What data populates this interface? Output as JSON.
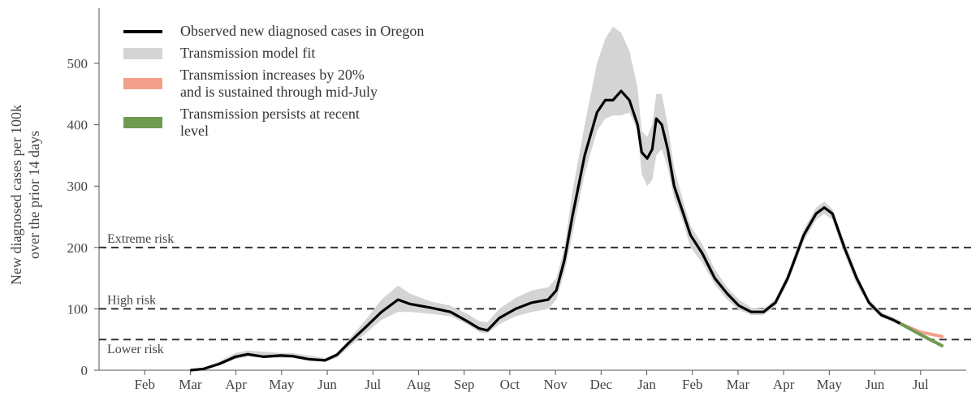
{
  "chart_data": {
    "type": "line",
    "ylabel": [
      "New diagnosed cases per 100k",
      "over the prior 14 days"
    ],
    "xlim": [
      0,
      19
    ],
    "xticks": [
      {
        "value": 1,
        "label": "Feb"
      },
      {
        "value": 2,
        "label": "Mar"
      },
      {
        "value": 3,
        "label": "Apr"
      },
      {
        "value": 4,
        "label": "May"
      },
      {
        "value": 5,
        "label": "Jun"
      },
      {
        "value": 6,
        "label": "Jul"
      },
      {
        "value": 7,
        "label": "Aug"
      },
      {
        "value": 8,
        "label": "Sep"
      },
      {
        "value": 9,
        "label": "Oct"
      },
      {
        "value": 10,
        "label": "Nov"
      },
      {
        "value": 11,
        "label": "Dec"
      },
      {
        "value": 12,
        "label": "Jan"
      },
      {
        "value": 13,
        "label": "Feb"
      },
      {
        "value": 14,
        "label": "Mar"
      },
      {
        "value": 15,
        "label": "Apr"
      },
      {
        "value": 16,
        "label": "May"
      },
      {
        "value": 17,
        "label": "Jun"
      },
      {
        "value": 18,
        "label": "Jul"
      }
    ],
    "ylim": [
      0,
      590
    ],
    "yticks": [
      0,
      100,
      200,
      300,
      400,
      500
    ],
    "thresholds": [
      {
        "value": 200,
        "label": "Extreme risk"
      },
      {
        "value": 100,
        "label": "High risk"
      },
      {
        "value": 50,
        "label": "Lower risk"
      }
    ],
    "series": [
      {
        "name": "Observed new diagnosed cases in Oregon",
        "color": "#000000",
        "kind": "line",
        "x": [
          2.0,
          2.28,
          2.63,
          2.99,
          3.26,
          3.61,
          3.97,
          4.23,
          4.59,
          4.95,
          5.21,
          5.48,
          5.84,
          6.19,
          6.55,
          6.81,
          7.26,
          7.7,
          8.06,
          8.33,
          8.51,
          8.77,
          9.13,
          9.48,
          9.84,
          10.02,
          10.2,
          10.37,
          10.64,
          10.91,
          11.09,
          11.26,
          11.44,
          11.62,
          11.8,
          11.89,
          12.01,
          12.12,
          12.21,
          12.33,
          12.46,
          12.6,
          12.78,
          12.96,
          13.22,
          13.49,
          13.76,
          14.02,
          14.29,
          14.56,
          14.82,
          15.09,
          15.44,
          15.71,
          15.89,
          16.07,
          16.33,
          16.6,
          16.87,
          17.14,
          17.4,
          17.58
        ],
        "values": [
          0,
          2,
          10,
          22,
          26,
          22,
          24,
          23,
          18,
          16,
          25,
          45,
          70,
          95,
          115,
          108,
          102,
          95,
          80,
          68,
          65,
          85,
          100,
          110,
          115,
          130,
          180,
          250,
          350,
          420,
          440,
          440,
          455,
          440,
          400,
          355,
          345,
          360,
          410,
          400,
          360,
          300,
          260,
          220,
          190,
          150,
          125,
          105,
          95,
          95,
          110,
          150,
          220,
          255,
          265,
          255,
          200,
          150,
          110,
          90,
          82,
          75
        ]
      },
      {
        "name": "Transmission model fit",
        "color": "#d4d4d4",
        "kind": "band",
        "x": [
          2.0,
          2.28,
          2.63,
          2.99,
          3.26,
          3.61,
          3.97,
          4.23,
          4.59,
          4.95,
          5.21,
          5.48,
          5.84,
          6.19,
          6.55,
          6.81,
          7.26,
          7.7,
          8.06,
          8.33,
          8.51,
          8.77,
          9.13,
          9.48,
          9.84,
          10.02,
          10.2,
          10.37,
          10.64,
          10.91,
          11.09,
          11.26,
          11.44,
          11.62,
          11.8,
          11.89,
          12.01,
          12.12,
          12.21,
          12.33,
          12.46,
          12.6,
          12.78,
          12.96,
          13.22,
          13.49,
          13.76,
          14.02,
          14.29,
          14.56,
          14.82,
          15.09,
          15.44,
          15.71,
          15.89,
          16.07,
          16.33,
          16.6,
          16.87,
          17.14,
          17.4,
          17.58
        ],
        "lower": [
          0,
          1,
          8,
          18,
          22,
          20,
          20,
          20,
          16,
          14,
          20,
          38,
          60,
          82,
          95,
          95,
          92,
          88,
          75,
          62,
          60,
          75,
          88,
          95,
          100,
          115,
          160,
          220,
          320,
          390,
          410,
          415,
          415,
          420,
          390,
          320,
          300,
          310,
          350,
          360,
          330,
          280,
          245,
          200,
          175,
          140,
          115,
          98,
          90,
          90,
          104,
          142,
          210,
          245,
          255,
          245,
          190,
          140,
          105,
          86,
          78,
          72
        ],
        "upper": [
          0,
          4,
          14,
          28,
          32,
          30,
          28,
          28,
          24,
          20,
          28,
          50,
          82,
          115,
          138,
          125,
          112,
          105,
          92,
          80,
          78,
          100,
          118,
          130,
          135,
          150,
          200,
          290,
          400,
          500,
          540,
          560,
          550,
          520,
          460,
          390,
          380,
          400,
          450,
          450,
          400,
          330,
          280,
          235,
          205,
          165,
          135,
          115,
          102,
          100,
          116,
          158,
          230,
          265,
          275,
          262,
          210,
          158,
          115,
          95,
          86,
          80
        ]
      },
      {
        "name": "Transmission increases by 20% and is sustained through mid-July",
        "color": "#f2a08c",
        "kind": "projection",
        "x": [
          17.58,
          18.0,
          18.47
        ],
        "values": [
          75,
          62,
          55
        ]
      },
      {
        "name": "Transmission persists at recent level",
        "color": "#6f9a52",
        "kind": "projection",
        "x": [
          17.58,
          18.0,
          18.47
        ],
        "values": [
          75,
          58,
          40
        ]
      }
    ]
  }
}
